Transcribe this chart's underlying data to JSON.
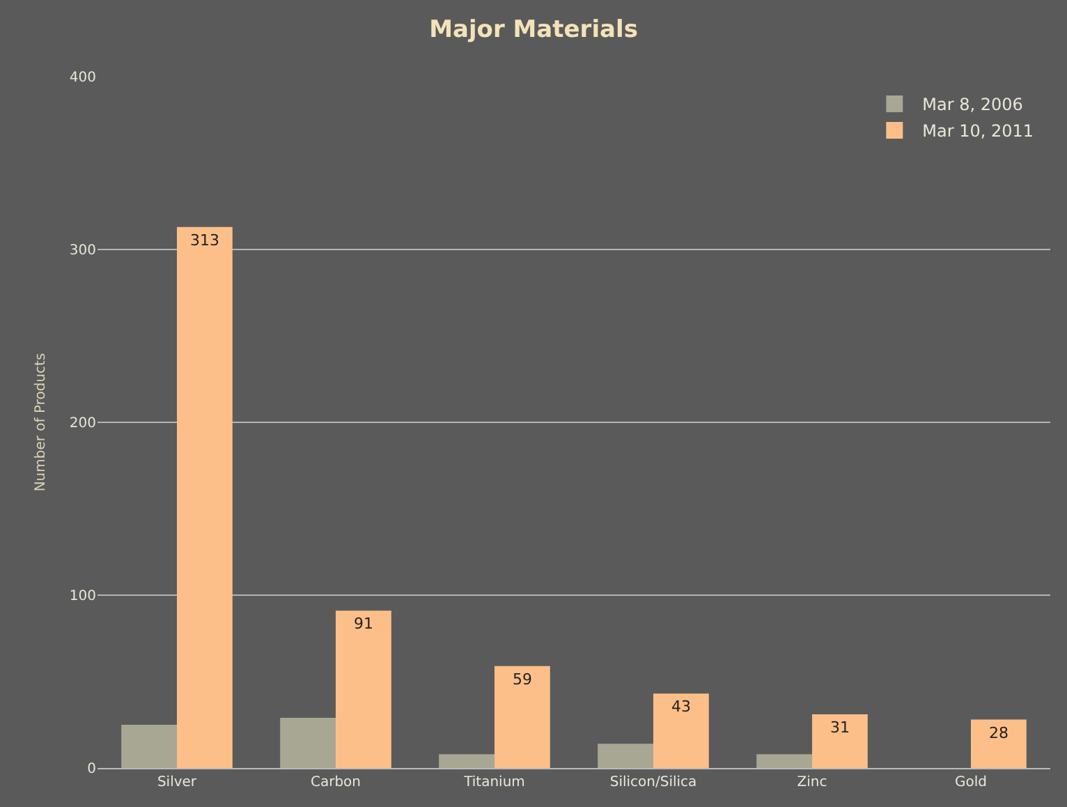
{
  "chart_data": {
    "type": "bar",
    "title": "Major Materials",
    "ylabel": "Number of Products",
    "categories": [
      "Silver",
      "Carbon",
      "Titanium",
      "Silicon/Silica",
      "Zinc",
      "Gold"
    ],
    "series": [
      {
        "name": "Mar 8, 2006",
        "color": "#a8a793",
        "values": [
          25,
          29,
          8,
          14,
          8,
          null
        ]
      },
      {
        "name": "Mar 10, 2011",
        "color": "#fcbf89",
        "values": [
          313,
          91,
          59,
          43,
          31,
          28
        ],
        "value_labels": [
          "313",
          "91",
          "59",
          "43",
          "31",
          "28"
        ]
      }
    ],
    "ylim": [
      0,
      400
    ],
    "yticks": [
      0,
      100,
      200,
      300,
      400
    ],
    "grid": "y",
    "legend": "top right"
  }
}
